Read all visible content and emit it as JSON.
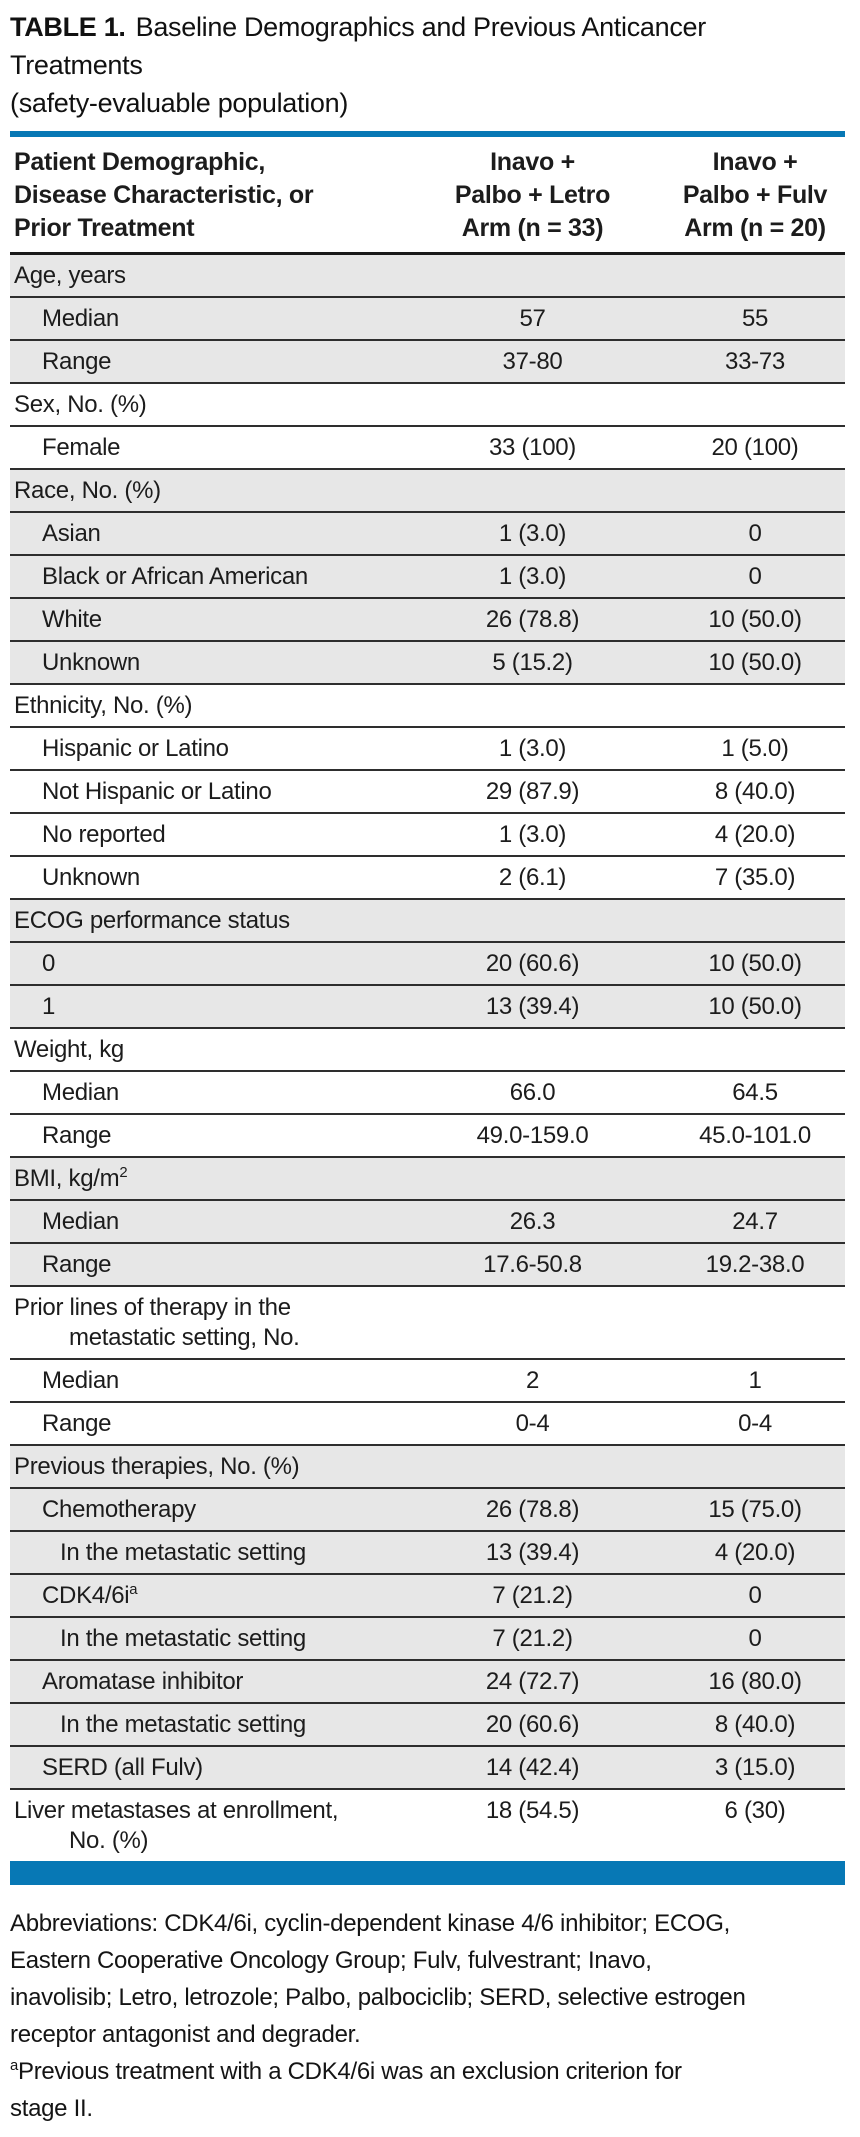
{
  "title": {
    "bold": "TABLE 1.",
    "rest": "Baseline Demographics and Previous Anticancer Treatments",
    "line2": "(safety-evaluable population)"
  },
  "colors": {
    "accent_blue": "#0778b5",
    "row_shade_gray": "#e7e7e7",
    "rule_dark": "#2e2e2e"
  },
  "table": {
    "header": {
      "col1": "Patient Demographic,\nDisease Characteristic, or\nPrior Treatment",
      "col2": "Inavo +\nPalbo + Letro\nArm (n = 33)",
      "col3": "Inavo +\nPalbo + Fulv\nArm (n = 20)"
    },
    "rows": [
      {
        "label": "Age, years",
        "indent": 0,
        "shaded": true,
        "v1": "",
        "v2": ""
      },
      {
        "label": "Median",
        "indent": 1,
        "shaded": true,
        "v1": "57",
        "v2": "55"
      },
      {
        "label": "Range",
        "indent": 1,
        "shaded": true,
        "v1": "37-80",
        "v2": "33-73"
      },
      {
        "label": "Sex, No. (%)",
        "indent": 0,
        "shaded": false,
        "v1": "",
        "v2": ""
      },
      {
        "label": "Female",
        "indent": 1,
        "shaded": false,
        "v1": "33 (100)",
        "v2": "20 (100)"
      },
      {
        "label": "Race, No. (%)",
        "indent": 0,
        "shaded": true,
        "v1": "",
        "v2": ""
      },
      {
        "label": "Asian",
        "indent": 1,
        "shaded": true,
        "v1": "1 (3.0)",
        "v2": "0"
      },
      {
        "label": "Black or African American",
        "indent": 1,
        "shaded": true,
        "v1": "1 (3.0)",
        "v2": "0"
      },
      {
        "label": "White",
        "indent": 1,
        "shaded": true,
        "v1": "26 (78.8)",
        "v2": "10 (50.0)"
      },
      {
        "label": "Unknown",
        "indent": 1,
        "shaded": true,
        "v1": "5 (15.2)",
        "v2": "10 (50.0)"
      },
      {
        "label": "Ethnicity, No. (%)",
        "indent": 0,
        "shaded": false,
        "v1": "",
        "v2": ""
      },
      {
        "label": "Hispanic or Latino",
        "indent": 1,
        "shaded": false,
        "v1": "1 (3.0)",
        "v2": "1 (5.0)"
      },
      {
        "label": "Not Hispanic or Latino",
        "indent": 1,
        "shaded": false,
        "v1": "29 (87.9)",
        "v2": "8 (40.0)"
      },
      {
        "label": "No reported",
        "indent": 1,
        "shaded": false,
        "v1": "1 (3.0)",
        "v2": "4 (20.0)"
      },
      {
        "label": "Unknown",
        "indent": 1,
        "shaded": false,
        "v1": "2 (6.1)",
        "v2": "7 (35.0)"
      },
      {
        "label": "ECOG performance status",
        "indent": 0,
        "shaded": true,
        "v1": "",
        "v2": ""
      },
      {
        "label": "0",
        "indent": 1,
        "shaded": true,
        "v1": "20 (60.6)",
        "v2": "10 (50.0)"
      },
      {
        "label": "1",
        "indent": 1,
        "shaded": true,
        "v1": "13 (39.4)",
        "v2": "10 (50.0)"
      },
      {
        "label": "Weight, kg",
        "indent": 0,
        "shaded": false,
        "v1": "",
        "v2": ""
      },
      {
        "label": "Median",
        "indent": 1,
        "shaded": false,
        "v1": "66.0",
        "v2": "64.5"
      },
      {
        "label": "Range",
        "indent": 1,
        "shaded": false,
        "v1": "49.0-159.0",
        "v2": "45.0-101.0"
      },
      {
        "label": "BMI, kg/m",
        "sup": "2",
        "indent": 0,
        "shaded": true,
        "v1": "",
        "v2": ""
      },
      {
        "label": "Median",
        "indent": 1,
        "shaded": true,
        "v1": "26.3",
        "v2": "24.7"
      },
      {
        "label": "Range",
        "indent": 1,
        "shaded": true,
        "v1": "17.6-50.8",
        "v2": "19.2-38.0"
      },
      {
        "label": "Prior lines of therapy in the",
        "label2": "metastatic setting, No.",
        "indent": 0,
        "shaded": false,
        "v1": "",
        "v2": ""
      },
      {
        "label": "Median",
        "indent": 1,
        "shaded": false,
        "v1": "2",
        "v2": "1"
      },
      {
        "label": "Range",
        "indent": 1,
        "shaded": false,
        "v1": "0-4",
        "v2": "0-4"
      },
      {
        "label": "Previous therapies, No. (%)",
        "indent": 0,
        "shaded": true,
        "v1": "",
        "v2": ""
      },
      {
        "label": "Chemotherapy",
        "indent": 1,
        "shaded": true,
        "v1": "26 (78.8)",
        "v2": "15 (75.0)"
      },
      {
        "label": "In the metastatic setting",
        "indent": 2,
        "shaded": true,
        "v1": "13 (39.4)",
        "v2": "4 (20.0)"
      },
      {
        "label": "CDK4/6i",
        "sup": "a",
        "indent": 1,
        "shaded": true,
        "v1": "7 (21.2)",
        "v2": "0"
      },
      {
        "label": "In the metastatic setting",
        "indent": 2,
        "shaded": true,
        "v1": "7 (21.2)",
        "v2": "0"
      },
      {
        "label": "Aromatase inhibitor",
        "indent": 1,
        "shaded": true,
        "v1": "24 (72.7)",
        "v2": "16 (80.0)"
      },
      {
        "label": "In the metastatic setting",
        "indent": 2,
        "shaded": true,
        "v1": "20 (60.6)",
        "v2": "8 (40.0)"
      },
      {
        "label": "SERD (all Fulv)",
        "indent": 1,
        "shaded": true,
        "v1": "14 (42.4)",
        "v2": "3 (15.0)"
      },
      {
        "label": "Liver metastases at enrollment,",
        "label2": "No. (%)",
        "indent": 0,
        "shaded": false,
        "v1": "18 (54.5)",
        "v2": "6 (30)"
      }
    ]
  },
  "footnotes": {
    "abbreviations": "Abbreviations: CDK4/6i, cyclin-dependent kinase 4/6 inhibitor; ECOG,\nEastern Cooperative Oncology Group; Fulv, fulvestrant; Inavo,\ninavolisib; Letro, letrozole; Palbo, palbociclib; SERD, selective estrogen\nreceptor antagonist and degrader.",
    "a_sup": "a",
    "a_text": "Previous treatment with a CDK4/6i was an exclusion criterion for\nstage II."
  }
}
